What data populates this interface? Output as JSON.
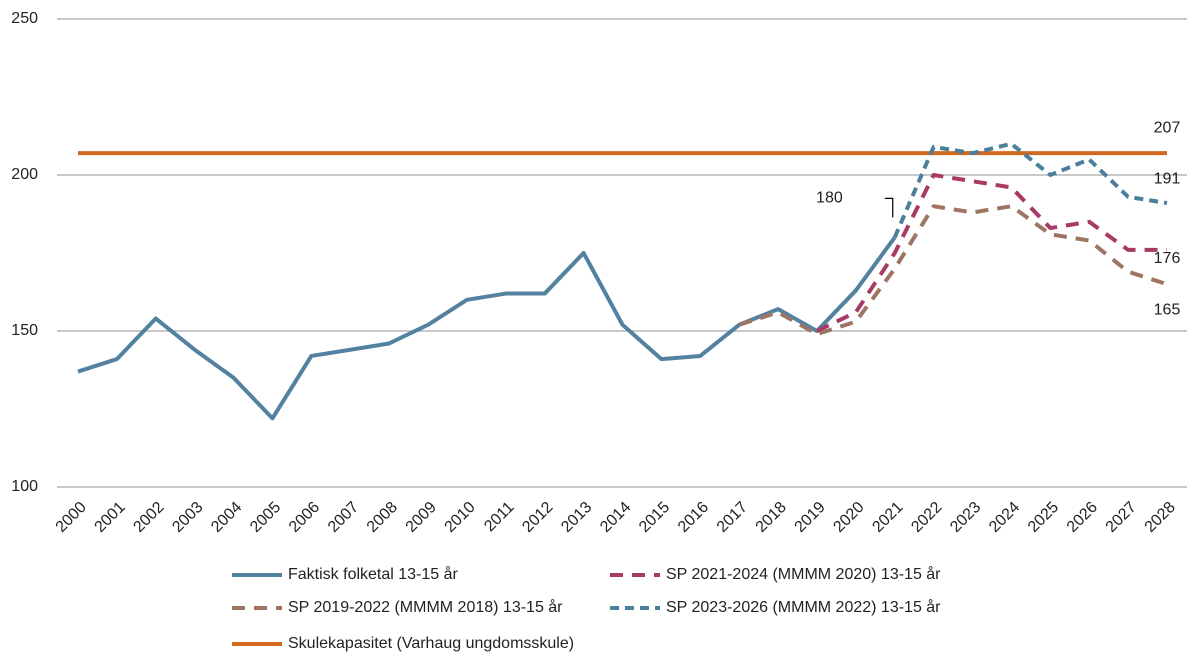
{
  "chart_data": {
    "type": "line",
    "categories": [
      "2000",
      "2001",
      "2002",
      "2003",
      "2004",
      "2005",
      "2006",
      "2007",
      "2008",
      "2009",
      "2010",
      "2011",
      "2012",
      "2013",
      "2014",
      "2015",
      "2016",
      "2017",
      "2018",
      "2019",
      "2020",
      "2021",
      "2022",
      "2023",
      "2024",
      "2025",
      "2026",
      "2027",
      "2028"
    ],
    "ylim": [
      100,
      250
    ],
    "yticks": [
      100,
      150,
      200,
      250
    ],
    "grid": true,
    "legend": "bottom",
    "series": [
      {
        "name": "Faktisk folketal 13-15 år",
        "color": "#5282a0",
        "dashed": false,
        "values": [
          137,
          141,
          154,
          144,
          135,
          122,
          142,
          144,
          146,
          152,
          160,
          162,
          162,
          175,
          152,
          141,
          142,
          152,
          157,
          150,
          163,
          180,
          null,
          null,
          null,
          null,
          null,
          null,
          null
        ]
      },
      {
        "name": "SP 2021-2024 (MMMM 2020) 13-15 år",
        "color": "#a83a63",
        "dashed": true,
        "values": [
          null,
          null,
          null,
          null,
          null,
          null,
          null,
          null,
          null,
          null,
          null,
          null,
          null,
          null,
          null,
          null,
          null,
          null,
          null,
          150,
          156,
          175,
          200,
          198,
          196,
          183,
          185,
          176,
          176
        ]
      },
      {
        "name": "SP 2019-2022 (MMMM 2018) 13-15 år",
        "color": "#9e7563",
        "dashed": true,
        "values": [
          null,
          null,
          null,
          null,
          null,
          null,
          null,
          null,
          null,
          null,
          null,
          null,
          null,
          null,
          null,
          null,
          null,
          152,
          156,
          149,
          153,
          170,
          190,
          188,
          190,
          181,
          179,
          169,
          165
        ]
      },
      {
        "name": "SP 2023-2026 (MMMM 2022) 13-15 år",
        "color": "#4b7f9b",
        "dashed": true,
        "values": [
          null,
          null,
          null,
          null,
          null,
          null,
          null,
          null,
          null,
          null,
          null,
          null,
          null,
          null,
          null,
          null,
          null,
          null,
          null,
          null,
          null,
          180,
          209,
          207,
          210,
          200,
          205,
          193,
          191
        ]
      },
      {
        "name": "Skulekapasitet (Varhaug ungdomsskule)",
        "color": "#d2691f",
        "dashed": false,
        "values": [
          207,
          207,
          207,
          207,
          207,
          207,
          207,
          207,
          207,
          207,
          207,
          207,
          207,
          207,
          207,
          207,
          207,
          207,
          207,
          207,
          207,
          207,
          207,
          207,
          207,
          207,
          207,
          207,
          207
        ]
      }
    ]
  }
}
